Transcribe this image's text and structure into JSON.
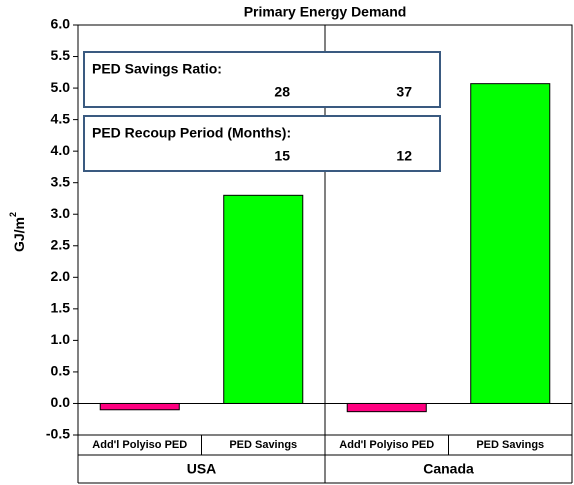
{
  "chart_data": {
    "type": "bar",
    "title": "Primary Energy Demand",
    "y_label": {
      "text": "GJ/m",
      "superscript": "2"
    },
    "groups": [
      "USA",
      "Canada"
    ],
    "categories": [
      "Add'l Polyiso PED",
      "PED Savings",
      "Add'l Polyiso PED",
      "PED Savings"
    ],
    "values": [
      -0.1,
      3.3,
      -0.13,
      5.07
    ],
    "colors": [
      "#ff0080",
      "#00ff00",
      "#ff0080",
      "#00ff00"
    ],
    "ylim": [
      -0.5,
      6.0
    ],
    "yticks": [
      -0.5,
      {
        "value": 0,
        "label": "0.0"
      },
      0.5,
      {
        "value": 1,
        "label": "1.0"
      },
      1.5,
      {
        "value": 2,
        "label": "2.0"
      },
      2.5,
      {
        "value": 3,
        "label": "3.0"
      },
      3.5,
      {
        "value": 4,
        "label": "4.0"
      },
      4.5,
      {
        "value": 5,
        "label": "5.0"
      },
      5.5,
      {
        "value": 6,
        "label": "6.0"
      }
    ],
    "annotations": [
      {
        "label": "PED Savings Ratio:",
        "values": [
          28,
          37
        ]
      },
      {
        "label": "PED Recoup Period (Months):",
        "values": [
          15,
          12
        ]
      }
    ]
  }
}
